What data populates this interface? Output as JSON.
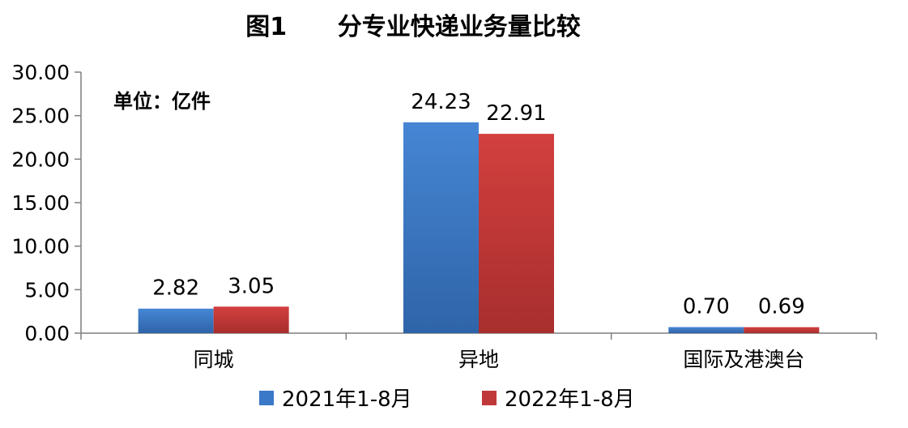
{
  "chart_data": {
    "type": "bar",
    "title": "图1      分专业快递业务量比较",
    "unit_note": "单位：亿件",
    "categories": [
      "同城",
      "异地",
      "国际及港澳台"
    ],
    "series": [
      {
        "name": "2021年1-8月",
        "values": [
          2.82,
          24.23,
          0.7
        ],
        "labels": [
          "2.82",
          "24.23",
          "0.70"
        ],
        "color": "#3a78c8"
      },
      {
        "name": "2022年1-8月",
        "values": [
          3.05,
          22.91,
          0.69
        ],
        "labels": [
          "3.05",
          "22.91",
          "0.69"
        ],
        "color": "#c0393a"
      }
    ],
    "ylim": [
      0,
      30
    ],
    "yticks": [
      "0.00",
      "5.00",
      "10.00",
      "15.00",
      "20.00",
      "25.00",
      "30.00"
    ],
    "grid": false,
    "legend_position": "bottom"
  }
}
